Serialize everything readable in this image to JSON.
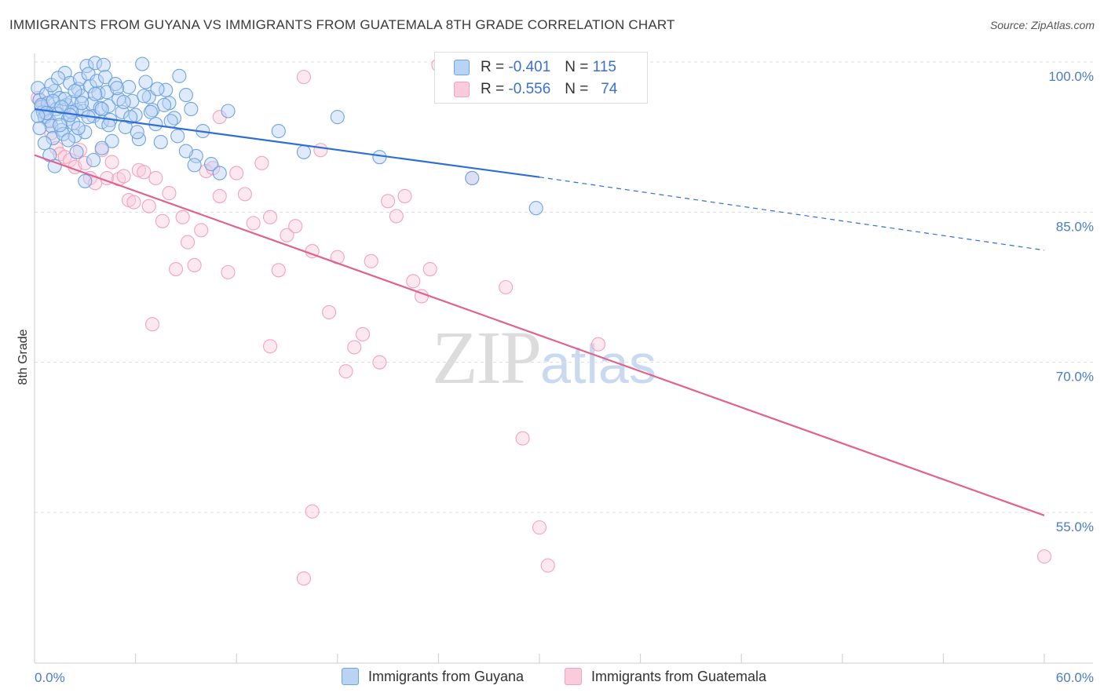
{
  "header": {
    "title": "IMMIGRANTS FROM GUYANA VS IMMIGRANTS FROM GUATEMALA 8TH GRADE CORRELATION CHART",
    "source": "Source: ZipAtlas.com"
  },
  "watermark": {
    "zip": "ZIP",
    "atlas": "atlas"
  },
  "legend": {
    "rows": [
      {
        "r_label": "R =",
        "r_value": "-0.401",
        "n_label": "N =",
        "n_value": "115"
      },
      {
        "r_label": "R =",
        "r_value": "-0.556",
        "n_label": "N =",
        "n_value": "74"
      }
    ]
  },
  "bottom_legend": {
    "items": [
      {
        "label": "Immigrants from Guyana"
      },
      {
        "label": "Immigrants from Guatemala"
      }
    ]
  },
  "chart_data": {
    "type": "scatter",
    "title": "IMMIGRANTS FROM GUYANA VS IMMIGRANTS FROM GUATEMALA 8TH GRADE CORRELATION CHART",
    "xlabel": "",
    "ylabel": "8th Grade",
    "xlim": [
      0,
      60
    ],
    "ylim": [
      37.5,
      103
    ],
    "x_ticks_labeled": [
      "0.0%",
      "60.0%"
    ],
    "y_ticks": [
      100,
      85,
      70,
      55
    ],
    "y_tick_labels": [
      "100.0%",
      "85.0%",
      "70.0%",
      "55.0%"
    ],
    "grid": "horizontal dashed",
    "colors": {
      "guyana": "#6fa3e0",
      "guyana_line": "#2f6fd4",
      "guatemala": "#f2a3bf",
      "guatemala_line": "#e0628f"
    },
    "series": [
      {
        "name": "Immigrants from Guyana",
        "r": -0.401,
        "n": 115,
        "trend": {
          "x0": 0,
          "y0": 95.3,
          "x1": 30,
          "y1": 88.5,
          "dashed_to_x": 60,
          "dashed_to_y": 81.2
        },
        "points": [
          [
            0.2,
            97.4
          ],
          [
            0.3,
            96.2
          ],
          [
            0.4,
            95.5
          ],
          [
            0.5,
            95.0
          ],
          [
            0.6,
            94.5
          ],
          [
            0.7,
            96.8
          ],
          [
            0.8,
            95.9
          ],
          [
            0.9,
            94.1
          ],
          [
            1.0,
            93.6
          ],
          [
            1.1,
            92.4
          ],
          [
            1.2,
            97.1
          ],
          [
            1.3,
            95.3
          ],
          [
            1.4,
            94.8
          ],
          [
            1.5,
            96.4
          ],
          [
            1.6,
            93.2
          ],
          [
            1.7,
            92.8
          ],
          [
            1.8,
            98.9
          ],
          [
            1.9,
            95.7
          ],
          [
            2.0,
            94.3
          ],
          [
            2.1,
            97.9
          ],
          [
            2.2,
            96.0
          ],
          [
            2.3,
            93.9
          ],
          [
            2.4,
            92.6
          ],
          [
            2.5,
            95.2
          ],
          [
            2.6,
            97.3
          ],
          [
            2.7,
            98.3
          ],
          [
            2.8,
            96.6
          ],
          [
            2.9,
            95.1
          ],
          [
            3.0,
            93.0
          ],
          [
            3.1,
            99.6
          ],
          [
            3.2,
            98.8
          ],
          [
            3.3,
            97.6
          ],
          [
            3.4,
            95.8
          ],
          [
            3.5,
            94.6
          ],
          [
            3.6,
            99.9
          ],
          [
            3.7,
            98.1
          ],
          [
            3.8,
            96.9
          ],
          [
            3.9,
            95.4
          ],
          [
            4.0,
            94.0
          ],
          [
            4.1,
            99.7
          ],
          [
            4.2,
            98.5
          ],
          [
            4.3,
            97.0
          ],
          [
            4.4,
            95.6
          ],
          [
            4.5,
            94.2
          ],
          [
            4.6,
            92.1
          ],
          [
            4.8,
            97.8
          ],
          [
            5.0,
            96.3
          ],
          [
            5.2,
            95.0
          ],
          [
            5.4,
            93.5
          ],
          [
            5.6,
            97.5
          ],
          [
            5.8,
            96.1
          ],
          [
            6.0,
            94.7
          ],
          [
            6.2,
            92.3
          ],
          [
            6.4,
            99.8
          ],
          [
            6.6,
            98.0
          ],
          [
            6.8,
            96.5
          ],
          [
            7.0,
            95.2
          ],
          [
            7.2,
            93.8
          ],
          [
            7.5,
            92.0
          ],
          [
            7.8,
            97.2
          ],
          [
            8.0,
            95.9
          ],
          [
            8.3,
            94.4
          ],
          [
            8.6,
            98.6
          ],
          [
            9.0,
            96.7
          ],
          [
            9.3,
            95.3
          ],
          [
            9.6,
            90.6
          ],
          [
            10.0,
            93.1
          ],
          [
            10.5,
            89.8
          ],
          [
            11.0,
            88.9
          ],
          [
            11.5,
            95.1
          ],
          [
            0.3,
            93.4
          ],
          [
            0.6,
            91.9
          ],
          [
            0.9,
            90.7
          ],
          [
            1.2,
            89.6
          ],
          [
            1.5,
            93.7
          ],
          [
            2.0,
            92.2
          ],
          [
            2.5,
            91.0
          ],
          [
            3.0,
            88.1
          ],
          [
            3.5,
            90.2
          ],
          [
            4.0,
            91.4
          ],
          [
            1.0,
            97.7
          ],
          [
            1.4,
            98.4
          ],
          [
            1.8,
            96.3
          ],
          [
            2.2,
            95.0
          ],
          [
            2.6,
            93.4
          ],
          [
            0.4,
            95.7
          ],
          [
            0.7,
            94.9
          ],
          [
            1.1,
            96.1
          ],
          [
            1.6,
            95.5
          ],
          [
            2.1,
            94.7
          ],
          [
            2.4,
            97.1
          ],
          [
            2.8,
            95.9
          ],
          [
            3.2,
            94.5
          ],
          [
            3.6,
            96.8
          ],
          [
            4.0,
            95.3
          ],
          [
            4.4,
            93.7
          ],
          [
            4.9,
            97.4
          ],
          [
            5.3,
            96.0
          ],
          [
            5.7,
            94.5
          ],
          [
            6.1,
            93.0
          ],
          [
            6.5,
            96.6
          ],
          [
            6.9,
            95.0
          ],
          [
            7.3,
            97.3
          ],
          [
            7.7,
            95.7
          ],
          [
            8.1,
            94.1
          ],
          [
            8.5,
            92.6
          ],
          [
            9.0,
            91.1
          ],
          [
            9.5,
            89.7
          ],
          [
            14.5,
            93.1
          ],
          [
            16.0,
            91.0
          ],
          [
            18.0,
            94.5
          ],
          [
            20.5,
            90.5
          ],
          [
            26.0,
            88.4
          ],
          [
            29.8,
            85.4
          ],
          [
            0.2,
            94.6
          ]
        ]
      },
      {
        "name": "Immigrants from Guatemala",
        "r": -0.556,
        "n": 74,
        "trend": {
          "x0": 0,
          "y0": 90.7,
          "x1": 60,
          "y1": 54.7
        },
        "points": [
          [
            0.2,
            96.4
          ],
          [
            0.5,
            95.8
          ],
          [
            0.8,
            94.2
          ],
          [
            1.0,
            92.9
          ],
          [
            1.3,
            91.4
          ],
          [
            1.5,
            90.8
          ],
          [
            1.8,
            90.5
          ],
          [
            2.1,
            90.2
          ],
          [
            2.4,
            89.5
          ],
          [
            2.7,
            91.2
          ],
          [
            3.0,
            89.9
          ],
          [
            3.3,
            88.4
          ],
          [
            3.6,
            87.9
          ],
          [
            4.0,
            91.2
          ],
          [
            4.3,
            88.4
          ],
          [
            4.6,
            90.0
          ],
          [
            5.0,
            88.3
          ],
          [
            5.3,
            88.6
          ],
          [
            5.6,
            86.2
          ],
          [
            5.9,
            86.0
          ],
          [
            6.2,
            89.2
          ],
          [
            6.5,
            89.0
          ],
          [
            6.8,
            85.6
          ],
          [
            7.2,
            88.4
          ],
          [
            7.6,
            84.1
          ],
          [
            8.0,
            86.9
          ],
          [
            8.4,
            79.3
          ],
          [
            8.8,
            84.5
          ],
          [
            9.1,
            82.0
          ],
          [
            9.5,
            79.7
          ],
          [
            9.9,
            83.2
          ],
          [
            10.2,
            89.1
          ],
          [
            10.6,
            89.4
          ],
          [
            11.0,
            86.6
          ],
          [
            11.5,
            79.0
          ],
          [
            12.0,
            88.9
          ],
          [
            12.5,
            86.8
          ],
          [
            13.0,
            83.9
          ],
          [
            13.5,
            89.9
          ],
          [
            14.0,
            84.5
          ],
          [
            14.5,
            79.2
          ],
          [
            15.0,
            82.7
          ],
          [
            15.5,
            83.6
          ],
          [
            16.0,
            98.5
          ],
          [
            16.5,
            81.1
          ],
          [
            17.0,
            91.2
          ],
          [
            17.5,
            75.0
          ],
          [
            18.0,
            80.5
          ],
          [
            18.5,
            69.1
          ],
          [
            19.0,
            71.5
          ],
          [
            19.5,
            72.8
          ],
          [
            20.0,
            80.1
          ],
          [
            20.5,
            70.0
          ],
          [
            21.0,
            86.1
          ],
          [
            21.5,
            84.6
          ],
          [
            22.0,
            86.6
          ],
          [
            22.5,
            78.1
          ],
          [
            23.0,
            76.6
          ],
          [
            23.5,
            79.3
          ],
          [
            24.0,
            99.7
          ],
          [
            25.0,
            99.8
          ],
          [
            26.0,
            88.4
          ],
          [
            28.0,
            77.5
          ],
          [
            30.0,
            53.5
          ],
          [
            30.5,
            49.7
          ],
          [
            33.0,
            99.8
          ],
          [
            33.5,
            71.8
          ],
          [
            14.0,
            71.6
          ],
          [
            16.5,
            55.1
          ],
          [
            16.0,
            48.4
          ],
          [
            29.0,
            62.4
          ],
          [
            60.0,
            50.6
          ],
          [
            7.0,
            73.8
          ],
          [
            11.0,
            94.5
          ]
        ]
      }
    ]
  }
}
